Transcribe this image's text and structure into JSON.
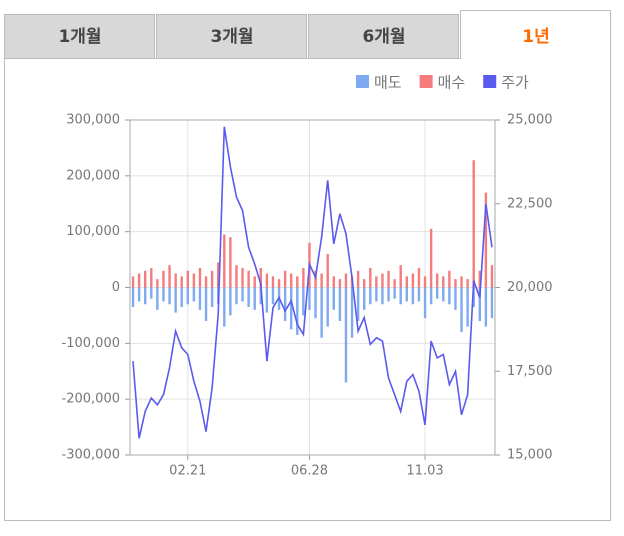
{
  "tabs": [
    "1개월",
    "3개월",
    "6개월",
    "1년"
  ],
  "active_tab": 3,
  "chart_data": {
    "type": "bar-line",
    "categories": [
      null,
      null,
      null,
      null,
      null,
      null,
      null,
      null,
      null,
      "02.21",
      null,
      null,
      null,
      null,
      null,
      null,
      null,
      null,
      null,
      null,
      null,
      null,
      null,
      null,
      null,
      null,
      null,
      null,
      null,
      "06.28",
      null,
      null,
      null,
      null,
      null,
      null,
      null,
      null,
      null,
      null,
      null,
      null,
      null,
      null,
      null,
      null,
      null,
      null,
      "11.03",
      null,
      null,
      null,
      null,
      null,
      null,
      null,
      null,
      null,
      null,
      null
    ],
    "series": [
      {
        "name": "매도",
        "color": "#7eaaf0",
        "values": [
          -35000,
          -25000,
          -30000,
          -20000,
          -40000,
          -25000,
          -30000,
          -45000,
          -35000,
          -30000,
          -25000,
          -40000,
          -60000,
          -35000,
          -30000,
          -70000,
          -50000,
          -30000,
          -25000,
          -35000,
          -40000,
          -30000,
          -45000,
          -30000,
          -40000,
          -60000,
          -75000,
          -85000,
          -50000,
          -40000,
          -55000,
          -90000,
          -70000,
          -40000,
          -60000,
          -170000,
          -90000,
          -60000,
          -40000,
          -30000,
          -25000,
          -30000,
          -25000,
          -20000,
          -30000,
          -25000,
          -30000,
          -25000,
          -55000,
          -30000,
          -20000,
          -25000,
          -30000,
          -40000,
          -80000,
          -70000,
          -35000,
          -60000,
          -70000,
          -55000
        ]
      },
      {
        "name": "매수",
        "color": "#f47c7c",
        "values": [
          20000,
          25000,
          30000,
          35000,
          15000,
          30000,
          40000,
          25000,
          20000,
          30000,
          25000,
          35000,
          20000,
          30000,
          45000,
          95000,
          90000,
          40000,
          35000,
          30000,
          20000,
          35000,
          25000,
          20000,
          15000,
          30000,
          25000,
          20000,
          35000,
          80000,
          30000,
          25000,
          60000,
          20000,
          15000,
          25000,
          20000,
          30000,
          15000,
          35000,
          20000,
          25000,
          30000,
          15000,
          40000,
          20000,
          25000,
          35000,
          20000,
          105000,
          25000,
          20000,
          30000,
          15000,
          20000,
          15000,
          228000,
          30000,
          170000,
          40000
        ]
      },
      {
        "name": "주가",
        "color": "#5a5aee",
        "axis": "y2",
        "values": [
          17800,
          15500,
          16300,
          16700,
          16500,
          16800,
          17600,
          18700,
          18200,
          18000,
          17200,
          16600,
          15700,
          17000,
          19200,
          24800,
          23600,
          22700,
          22300,
          21200,
          20700,
          20100,
          17800,
          19400,
          19700,
          19300,
          19600,
          18900,
          18600,
          20700,
          20300,
          21500,
          23200,
          21300,
          22200,
          21600,
          20300,
          18700,
          19100,
          18300,
          18500,
          18400,
          17300,
          16800,
          16300,
          17200,
          17400,
          16900,
          15900,
          18400,
          17900,
          18000,
          17100,
          17500,
          16200,
          16800,
          20200,
          19700,
          22500,
          21200
        ]
      }
    ],
    "ylim": [
      -300000,
      300000
    ],
    "yticks": [
      {
        "value": -300000,
        "label": "-300,000"
      },
      {
        "value": -200000,
        "label": "-200,000"
      },
      {
        "value": -100000,
        "label": "-100,000"
      },
      0,
      {
        "value": 100000,
        "label": "100,000"
      },
      {
        "value": 200000,
        "label": "200,000"
      },
      {
        "value": 300000,
        "label": "300,000"
      }
    ],
    "y2lim": [
      15000,
      25000
    ],
    "y2ticks": [
      {
        "value": 15000,
        "label": "15,000"
      },
      {
        "value": 17500,
        "label": "17,500"
      },
      {
        "value": 20000,
        "label": "20,000"
      },
      {
        "value": 22500,
        "label": "22,500"
      },
      {
        "value": 25000,
        "label": "25,000"
      }
    ],
    "grid": true
  }
}
